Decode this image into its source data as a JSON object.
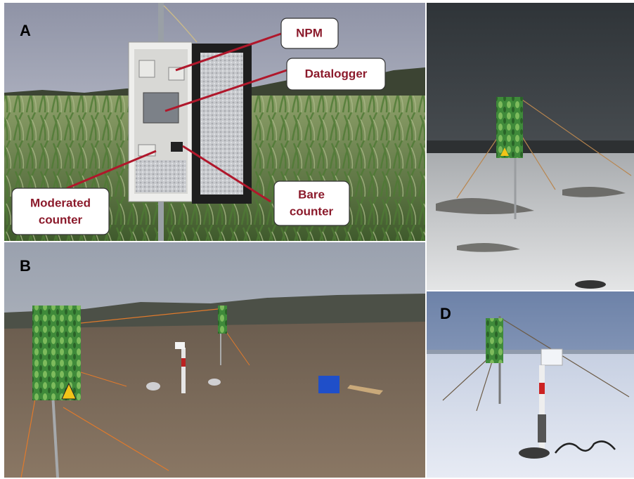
{
  "labels": {
    "a": "A",
    "b": "B",
    "d": "D"
  },
  "callouts": [
    {
      "lines": [
        "NPM"
      ]
    },
    {
      "lines": [
        "Datalogger"
      ]
    },
    {
      "lines": [
        "Moderated",
        "counter"
      ]
    },
    {
      "lines": [
        "Bare",
        "counter"
      ]
    }
  ]
}
